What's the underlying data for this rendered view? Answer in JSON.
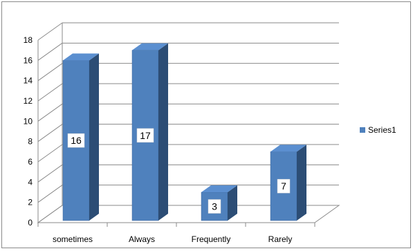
{
  "chart_data": {
    "type": "bar",
    "style": "3d-clustered-column",
    "title": "",
    "xlabel": "",
    "ylabel": "",
    "categories": [
      "sometimes",
      "Always",
      "Frequently",
      "Rarely"
    ],
    "series": [
      {
        "name": "Series1",
        "values": [
          16,
          17,
          3,
          7
        ],
        "color": "#4F81BD"
      }
    ],
    "ylim": [
      0,
      18
    ],
    "ytick_step": 2,
    "yticks": [
      "0",
      "2",
      "4",
      "6",
      "8",
      "10",
      "12",
      "14",
      "16",
      "18"
    ],
    "data_labels": [
      "16",
      "17",
      "3",
      "7"
    ],
    "grid": true,
    "legend": "right",
    "colors": {
      "bar_front": "#4F81BD",
      "bar_side": "#2C4D75",
      "bar_top": "#5B8FD0",
      "gridline": "#8A8A8A",
      "wall": "#FFFFFF"
    }
  }
}
